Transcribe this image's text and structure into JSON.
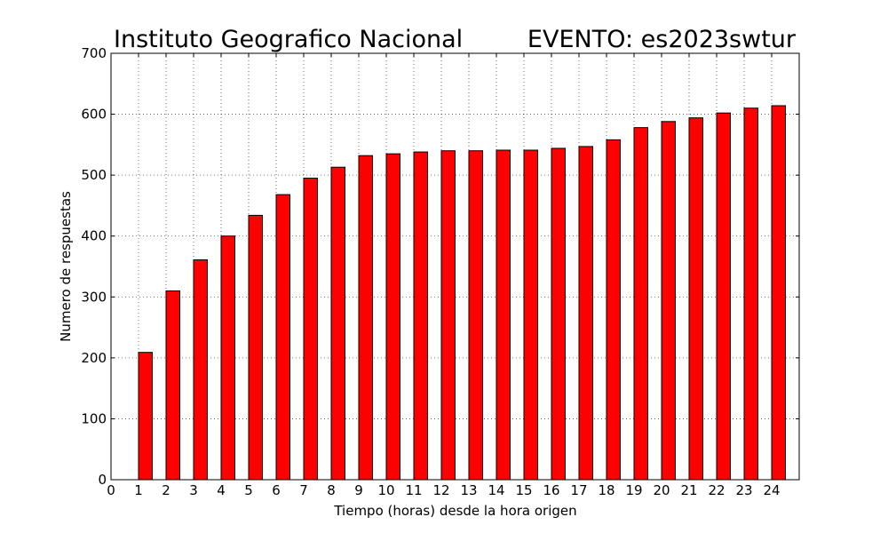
{
  "chart_data": {
    "type": "bar",
    "title_left": "Instituto Geografico Nacional",
    "title_right": "EVENTO: es2023swtur",
    "xlabel": "Tiempo (horas) desde la hora origen",
    "ylabel": "Numero de respuestas",
    "xlim": [
      0,
      25
    ],
    "ylim": [
      0,
      700
    ],
    "x_ticks": [
      0,
      1,
      2,
      3,
      4,
      5,
      6,
      7,
      8,
      9,
      10,
      11,
      12,
      13,
      14,
      15,
      16,
      17,
      18,
      19,
      20,
      21,
      22,
      23,
      24
    ],
    "y_ticks": [
      0,
      100,
      200,
      300,
      400,
      500,
      600,
      700
    ],
    "grid": true,
    "bar_width": 0.5,
    "bar_color": "#ff0000",
    "x": [
      1,
      2,
      3,
      4,
      5,
      6,
      7,
      8,
      9,
      10,
      11,
      12,
      13,
      14,
      15,
      16,
      17,
      18,
      19,
      20,
      21,
      22,
      23,
      24
    ],
    "values": [
      209,
      310,
      361,
      400,
      434,
      468,
      495,
      513,
      532,
      535,
      538,
      540,
      540,
      541,
      541,
      544,
      547,
      558,
      578,
      588,
      594,
      602,
      610,
      614
    ]
  }
}
